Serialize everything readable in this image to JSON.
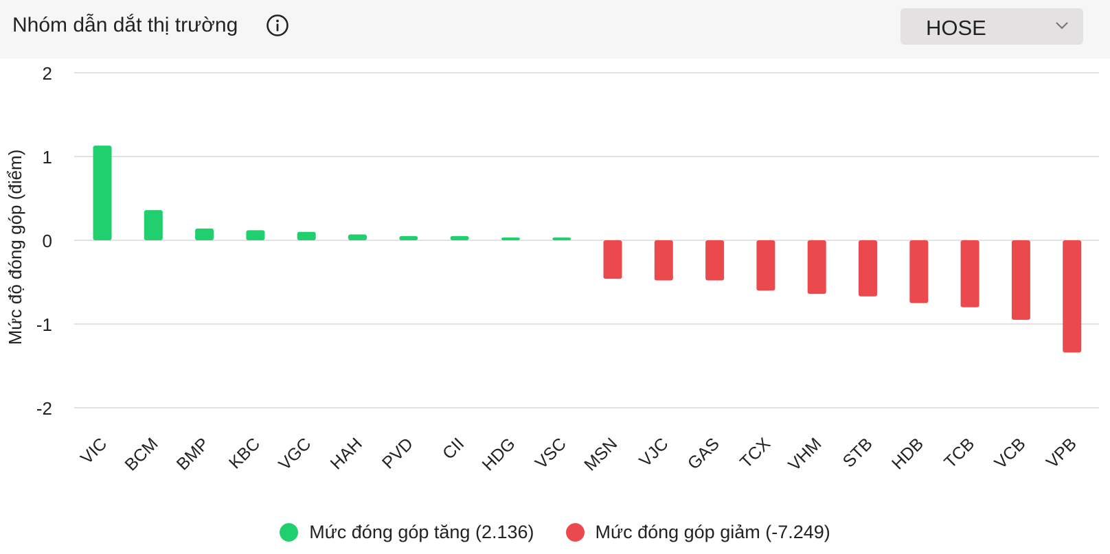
{
  "header": {
    "title": "Nhóm dẫn dắt thị trường",
    "info_icon": "info-circle-icon",
    "exchange": {
      "selected": "HOSE",
      "icon": "chevron-down-icon"
    }
  },
  "colors": {
    "positive": "#21cf6e",
    "negative": "#ea4a4e",
    "grid": "#e2e2e2",
    "header_bg": "#f6f6f6",
    "select_bg": "#e3e1e1"
  },
  "chart_data": {
    "type": "bar",
    "title": "",
    "xlabel": "",
    "ylabel": "Mức độ đóng góp (điểm)",
    "ylim": [
      -2,
      2
    ],
    "yticks": [
      2,
      1,
      0,
      -1,
      -2
    ],
    "ytick_labels": [
      "2",
      "1",
      "0",
      "-1",
      "-2"
    ],
    "grid": true,
    "legend_position": "bottom",
    "categories": [
      "VIC",
      "BCM",
      "BMP",
      "KBC",
      "VGC",
      "HAH",
      "PVD",
      "CII",
      "HDG",
      "VSC",
      "MSN",
      "VJC",
      "GAS",
      "TCX",
      "VHM",
      "STB",
      "HDB",
      "TCB",
      "VCB",
      "VPB"
    ],
    "series": [
      {
        "name": "Mức đóng góp tăng (2.136)",
        "color": "#21cf6e",
        "values": [
          1.13,
          0.36,
          0.14,
          0.12,
          0.1,
          0.07,
          0.05,
          0.05,
          0.03,
          0.03,
          null,
          null,
          null,
          null,
          null,
          null,
          null,
          null,
          null,
          null
        ]
      },
      {
        "name": "Mức đóng góp giảm (-7.249)",
        "color": "#ea4a4e",
        "values": [
          null,
          null,
          null,
          null,
          null,
          null,
          null,
          null,
          null,
          null,
          -0.46,
          -0.48,
          -0.48,
          -0.6,
          -0.64,
          -0.67,
          -0.75,
          -0.8,
          -0.95,
          -1.34
        ]
      }
    ]
  }
}
